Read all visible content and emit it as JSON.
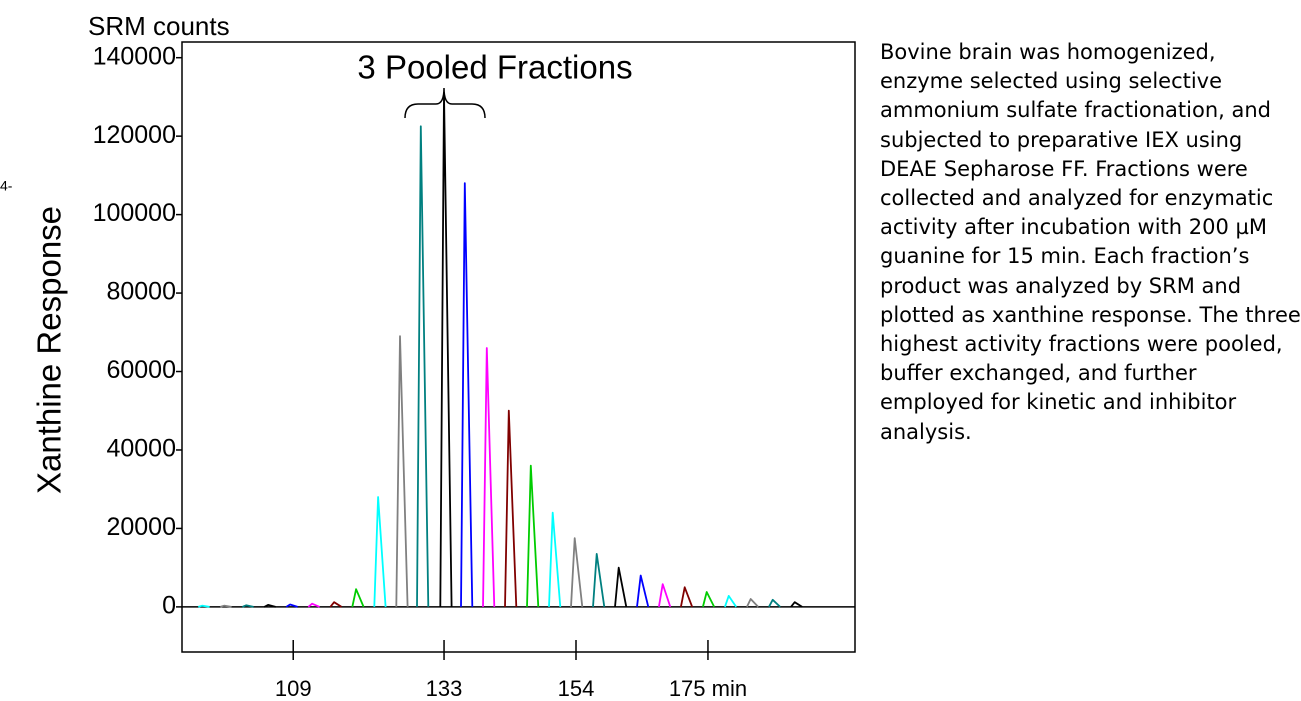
{
  "chart_data": {
    "type": "line",
    "title": "SRM counts",
    "y_label": "Xanthine Response",
    "annotation": "3 Pooled Fractions",
    "corner_note": "4-",
    "xlim": [
      91.3,
      198.4
    ],
    "ylim": [
      -11500,
      144000
    ],
    "xticks": [
      109,
      133,
      154,
      {
        "value": 175,
        "label": "175 min"
      }
    ],
    "yticks": [
      0,
      20000,
      40000,
      60000,
      80000,
      100000,
      120000,
      140000
    ],
    "series": [
      {
        "color": "#00ffff",
        "x": [
          93.9,
          94.5,
          95.7
        ],
        "values": [
          0,
          300,
          0
        ]
      },
      {
        "color": "#808080",
        "x": [
          97.4,
          98.0,
          99.2
        ],
        "values": [
          0,
          300,
          0
        ]
      },
      {
        "color": "#008080",
        "x": [
          100.9,
          101.5,
          102.7
        ],
        "values": [
          0,
          400,
          0
        ]
      },
      {
        "color": "#000000",
        "x": [
          104.4,
          105.0,
          106.2
        ],
        "values": [
          0,
          500,
          0
        ]
      },
      {
        "color": "#0000ff",
        "x": [
          107.9,
          108.5,
          109.7
        ],
        "values": [
          0,
          600,
          0
        ]
      },
      {
        "color": "#ff00ff",
        "x": [
          111.4,
          112.0,
          113.2
        ],
        "values": [
          0,
          800,
          0
        ]
      },
      {
        "color": "#800000",
        "x": [
          114.9,
          115.5,
          116.7
        ],
        "values": [
          0,
          1200,
          0
        ]
      },
      {
        "color": "#00cc00",
        "x": [
          118.4,
          119.0,
          120.2
        ],
        "values": [
          0,
          4500,
          0
        ]
      },
      {
        "color": "#00ffff",
        "x": [
          121.9,
          122.5,
          123.7
        ],
        "values": [
          0,
          28000,
          0
        ]
      },
      {
        "color": "#808080",
        "x": [
          125.4,
          126.0,
          127.2
        ],
        "values": [
          0,
          69000,
          0
        ]
      },
      {
        "color": "#008080",
        "x": [
          128.7,
          129.3,
          130.5
        ],
        "values": [
          0,
          122500,
          0
        ]
      },
      {
        "color": "#000000",
        "x": [
          132.4,
          133.0,
          134.2
        ],
        "values": [
          0,
          131000,
          0
        ]
      },
      {
        "color": "#0000ff",
        "x": [
          135.7,
          136.3,
          137.5
        ],
        "values": [
          0,
          108000,
          0
        ]
      },
      {
        "color": "#ff00ff",
        "x": [
          139.2,
          139.8,
          141.0
        ],
        "values": [
          0,
          66000,
          0
        ]
      },
      {
        "color": "#800000",
        "x": [
          142.7,
          143.3,
          144.5
        ],
        "values": [
          0,
          50000,
          0
        ]
      },
      {
        "color": "#00cc00",
        "x": [
          146.2,
          146.8,
          148.0
        ],
        "values": [
          0,
          36000,
          0
        ]
      },
      {
        "color": "#00ffff",
        "x": [
          149.7,
          150.3,
          151.5
        ],
        "values": [
          0,
          24000,
          0
        ]
      },
      {
        "color": "#808080",
        "x": [
          153.2,
          153.8,
          155.0
        ],
        "values": [
          0,
          17500,
          0
        ]
      },
      {
        "color": "#008080",
        "x": [
          156.7,
          157.3,
          158.5
        ],
        "values": [
          0,
          13500,
          0
        ]
      },
      {
        "color": "#000000",
        "x": [
          160.2,
          160.8,
          162.0
        ],
        "values": [
          0,
          10000,
          0
        ]
      },
      {
        "color": "#0000ff",
        "x": [
          163.7,
          164.3,
          165.5
        ],
        "values": [
          0,
          8000,
          0
        ]
      },
      {
        "color": "#ff00ff",
        "x": [
          167.2,
          167.8,
          169.0
        ],
        "values": [
          0,
          5800,
          0
        ]
      },
      {
        "color": "#800000",
        "x": [
          170.7,
          171.3,
          172.5
        ],
        "values": [
          0,
          5000,
          0
        ]
      },
      {
        "color": "#00cc00",
        "x": [
          174.2,
          174.8,
          176.0
        ],
        "values": [
          0,
          3800,
          0
        ]
      },
      {
        "color": "#00ffff",
        "x": [
          177.7,
          178.3,
          179.5
        ],
        "values": [
          0,
          2800,
          0
        ]
      },
      {
        "color": "#808080",
        "x": [
          181.2,
          181.8,
          183.0
        ],
        "values": [
          0,
          2000,
          0
        ]
      },
      {
        "color": "#008080",
        "x": [
          184.7,
          185.3,
          186.5
        ],
        "values": [
          0,
          1800,
          0
        ]
      },
      {
        "color": "#000000",
        "x": [
          188.2,
          188.8,
          190.0
        ],
        "values": [
          0,
          1200,
          0
        ]
      }
    ]
  },
  "caption": "Bovine brain was homogenized, enzyme selected using selective ammonium sulfate fractionation, and subjected to preparative IEX using DEAE Sepharose FF. Fractions were collected and analyzed for enzymatic activity after incubation with 200 µM guanine for 15 min. Each fraction’s product was analyzed by SRM and plotted as xanthine response. The three highest activity fractions were pooled, buffer exchanged, and further employed for kinetic and inhibitor analysis."
}
